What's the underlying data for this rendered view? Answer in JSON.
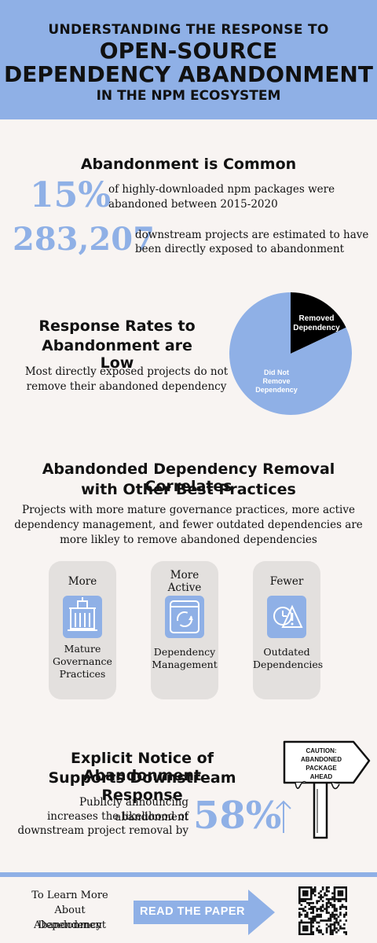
{
  "header": {
    "line1": "UNDERSTANDING THE RESPONSE TO",
    "line2": "OPEN-SOURCE",
    "line3": "DEPENDENCY ABANDONMENT",
    "line4": "IN THE NPM ECOSYSTEM"
  },
  "common": {
    "title": "Abandonment is Common",
    "stat1_value": "15%",
    "stat1_line1": "of highly-downloaded npm packages were",
    "stat1_line2": "abandoned between 2015-2020",
    "stat2_value": "283,207",
    "stat2_line1": "downstream projects are estimated to have",
    "stat2_line2": "been directly exposed to abandonment"
  },
  "response": {
    "title_line1": "Response Rates to",
    "title_line2": "Abandonment are Low",
    "text_line1": "Most directly exposed projects do not",
    "text_line2": "remove their abandoned dependency",
    "slice_removed_line1": "Removed",
    "slice_removed_line2": "Dependency",
    "slice_not_line1": "Did Not",
    "slice_not_line2": "Remove",
    "slice_not_line3": "Dependency"
  },
  "chart_data": {
    "type": "pie",
    "slices": [
      {
        "label": "Removed Dependency",
        "value": 18,
        "color": "#000000"
      },
      {
        "label": "Did Not Remove Dependency",
        "value": 82,
        "color": "#8fb0e6"
      }
    ]
  },
  "correlates": {
    "title_line1": "Abandonded Dependency Removal Correlates",
    "title_line2": "with Other Best Practices",
    "text_line1": "Projects with more mature governance practices, more active",
    "text_line2": "dependency management, and fewer outdated dependencies are",
    "text_line3": "more likley to remove abandoned dependencies",
    "cards": [
      {
        "top": [
          "More"
        ],
        "bottom": [
          "Mature",
          "Governance",
          "Practices"
        ],
        "icon": "building-icon"
      },
      {
        "top": [
          "More",
          "Active"
        ],
        "bottom": [
          "Dependency",
          "Management"
        ],
        "icon": "refresh-icon"
      },
      {
        "top": [
          "Fewer"
        ],
        "bottom": [
          "Outdated",
          "Dependencies"
        ],
        "icon": "warning-clock-icon"
      }
    ]
  },
  "notice": {
    "title_line1": "Explicit Notice of Abandonment",
    "title_line2": "Supports Downstream Response",
    "text_line1": "Publicly announcing abandonment",
    "text_line2": "increases the likelihood of",
    "text_line3": "downstream project removal by",
    "stat_value": "58%",
    "sign_line1": "CAUTION:",
    "sign_line2": "ABANDONED",
    "sign_line3": "PACKAGE",
    "sign_line4": "AHEAD"
  },
  "footer": {
    "learn_line1": "To Learn More",
    "learn_line2": "About Dependency",
    "learn_line3": "Abandonment",
    "cta_label": "READ THE PAPER"
  },
  "colors": {
    "accent": "#8fb0e6",
    "background": "#f8f4f2",
    "card": "#e3e0de"
  }
}
